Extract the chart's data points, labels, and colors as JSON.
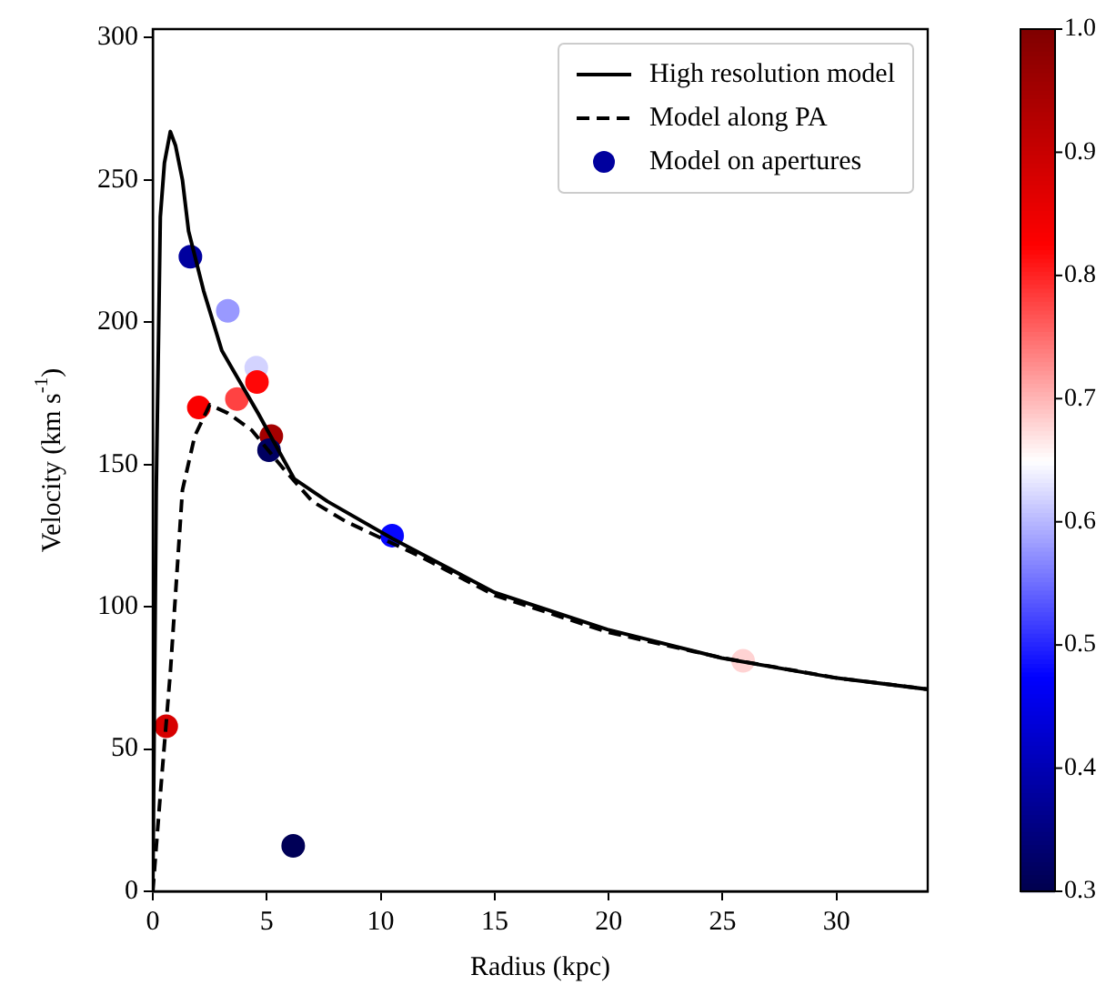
{
  "chart_data": {
    "type": "line",
    "xlabel": "Radius (kpc)",
    "ylabel": "Velocity (km s$^{-1}$)",
    "xlim": [
      0,
      34
    ],
    "xticks": [
      0,
      5,
      10,
      15,
      20,
      25,
      30
    ],
    "ylim": [
      0,
      303
    ],
    "yticks": [
      0,
      50,
      100,
      150,
      200,
      250,
      300
    ],
    "grid": false,
    "legend": "top right",
    "clim": [
      0.3,
      1.0
    ],
    "cticks": [
      0.3,
      0.4,
      0.5,
      0.6,
      0.7,
      0.8,
      0.9,
      {
        "value": 1.0,
        "label": "1.0"
      }
    ],
    "series": [
      {
        "name": "High resolution model",
        "line_style": "solid",
        "marker": "none",
        "color": "#000000",
        "x": [
          0,
          0.15,
          0.33,
          0.51,
          0.77,
          1.0,
          1.3,
          1.57,
          2.23,
          3.03,
          4.62,
          6.2,
          7.67,
          10.5,
          15,
          19.95,
          24.96,
          29.95,
          34
        ],
        "values": [
          0,
          140,
          237,
          256,
          267,
          262,
          250,
          232,
          211,
          190,
          168,
          145,
          137,
          124,
          105,
          92,
          82,
          75,
          71
        ]
      },
      {
        "name": "Model along PA",
        "line_style": "dashed",
        "marker": "none",
        "color": "#000000",
        "x": [
          0,
          0.37,
          0.77,
          1.3,
          1.84,
          2.5,
          3.3,
          4.35,
          5.68,
          7.0,
          8.46,
          11.65,
          15,
          20,
          25,
          30,
          34
        ],
        "values": [
          0,
          38,
          77,
          141,
          160,
          171,
          168,
          162,
          149,
          137,
          130,
          118,
          104,
          91,
          82,
          75,
          71
        ]
      },
      {
        "name": "Model on apertures",
        "type": "scatter",
        "marker": "circle",
        "x": [
          1.65,
          3.29,
          4.54,
          4.57,
          3.69,
          2.02,
          5.2,
          5.1,
          10.5,
          0.59,
          6.16,
          25.9
        ],
        "values": [
          223,
          204,
          184,
          179,
          173,
          170,
          160,
          155,
          125,
          58,
          16,
          81
        ],
        "colors": [
          "#00009e",
          "#9999ff",
          "#d3d3ff",
          "#ff0707",
          "#ff4242",
          "#fb0000",
          "#a40000",
          "#000061",
          "#0707ff",
          "#d70000",
          "#000057",
          "#ffd3d3"
        ],
        "cvalues": [
          0.38,
          0.58,
          0.62,
          0.82,
          0.78,
          0.83,
          0.95,
          0.32,
          0.48,
          0.88,
          0.31,
          0.68
        ]
      }
    ]
  }
}
